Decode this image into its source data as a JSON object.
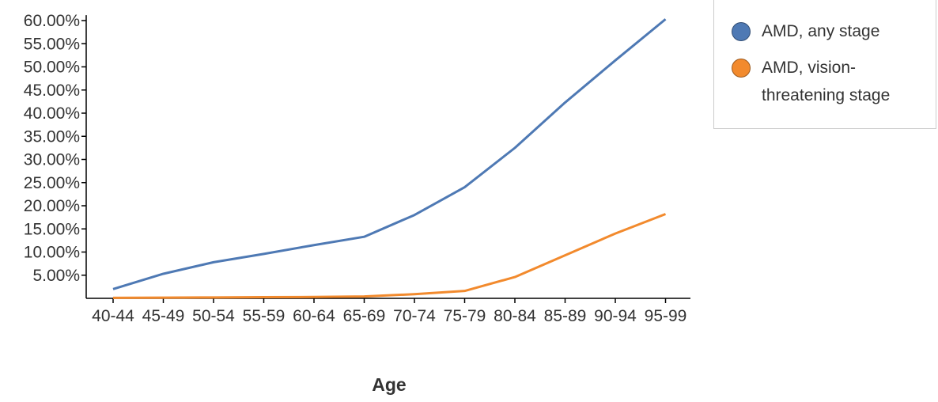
{
  "chart_data": {
    "type": "line",
    "categories": [
      "40-44",
      "45-49",
      "50-54",
      "55-59",
      "60-64",
      "65-69",
      "70-74",
      "75-79",
      "80-84",
      "85-89",
      "90-94",
      "95-99"
    ],
    "series": [
      {
        "name": "AMD, any stage",
        "color": "#4e79b4",
        "values": [
          2.0,
          5.3,
          7.8,
          9.6,
          11.5,
          13.3,
          18.0,
          24.0,
          32.5,
          42.3,
          51.4,
          60.3
        ]
      },
      {
        "name": "AMD, vision-threatening stage",
        "color": "#f28a2d",
        "values": [
          0.1,
          0.15,
          0.2,
          0.25,
          0.3,
          0.4,
          0.9,
          1.6,
          4.6,
          9.3,
          14.0,
          18.2
        ]
      }
    ],
    "yticks": [
      "5.00%",
      "10.00%",
      "15.00%",
      "20.00%",
      "25.00%",
      "30.00%",
      "35.00%",
      "40.00%",
      "45.00%",
      "50.00%",
      "55.00%",
      "60.00%"
    ],
    "ylim": [
      0,
      60.5
    ],
    "xlabel": "Age",
    "ylabel": "",
    "legend": "top-right",
    "grid": false
  }
}
